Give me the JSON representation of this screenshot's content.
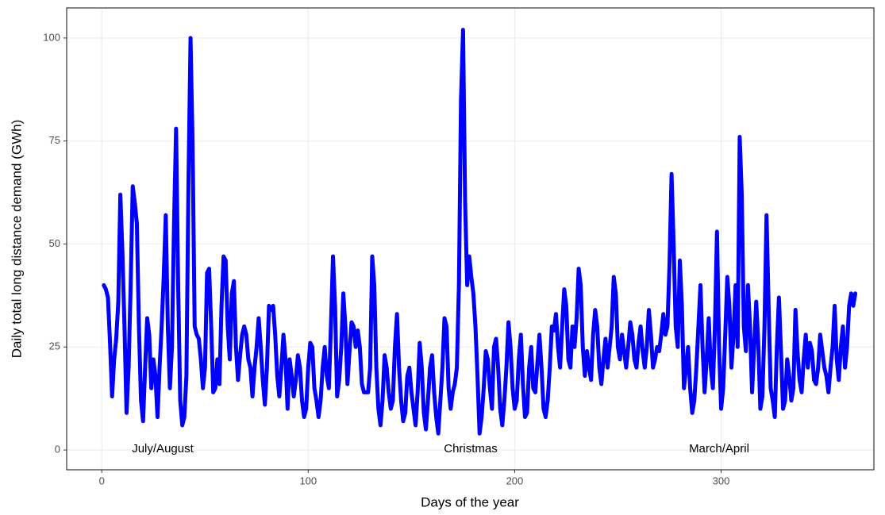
{
  "chart_data": {
    "type": "line",
    "x_label": "Days of the year",
    "y_label": "Daily total long distance demand (GWh)",
    "annotations": [
      "July/August",
      "Christmas",
      "March/April"
    ],
    "color": "#0000ff",
    "grid": true,
    "xlim": [
      -17,
      374
    ],
    "ylim": [
      -4.8,
      107.3
    ],
    "xticks": [
      0,
      100,
      200,
      300
    ],
    "yticks": [
      0,
      25,
      50,
      75,
      100
    ],
    "x": [
      1,
      2,
      3,
      4,
      5,
      6,
      7,
      8,
      9,
      10,
      11,
      12,
      13,
      14,
      15,
      16,
      17,
      18,
      19,
      20,
      21,
      22,
      23,
      24,
      25,
      26,
      27,
      28,
      29,
      30,
      31,
      32,
      33,
      34,
      35,
      36,
      37,
      38,
      39,
      40,
      41,
      42,
      43,
      44,
      45,
      46,
      47,
      48,
      49,
      50,
      51,
      52,
      53,
      54,
      55,
      56,
      57,
      58,
      59,
      60,
      61,
      62,
      63,
      64,
      65,
      66,
      67,
      68,
      69,
      70,
      71,
      72,
      73,
      74,
      75,
      76,
      77,
      78,
      79,
      80,
      81,
      82,
      83,
      84,
      85,
      86,
      87,
      88,
      89,
      90,
      91,
      92,
      93,
      94,
      95,
      96,
      97,
      98,
      99,
      100,
      101,
      102,
      103,
      104,
      105,
      106,
      107,
      108,
      109,
      110,
      111,
      112,
      113,
      114,
      115,
      116,
      117,
      118,
      119,
      120,
      121,
      122,
      123,
      124,
      125,
      126,
      127,
      128,
      129,
      130,
      131,
      132,
      133,
      134,
      135,
      136,
      137,
      138,
      139,
      140,
      141,
      142,
      143,
      144,
      145,
      146,
      147,
      148,
      149,
      150,
      151,
      152,
      153,
      154,
      155,
      156,
      157,
      158,
      159,
      160,
      161,
      162,
      163,
      164,
      165,
      166,
      167,
      168,
      169,
      170,
      171,
      172,
      173,
      174,
      175,
      176,
      177,
      178,
      179,
      180,
      181,
      182,
      183,
      184,
      185,
      186,
      187,
      188,
      189,
      190,
      191,
      192,
      193,
      194,
      195,
      196,
      197,
      198,
      199,
      200,
      201,
      202,
      203,
      204,
      205,
      206,
      207,
      208,
      209,
      210,
      211,
      212,
      213,
      214,
      215,
      216,
      217,
      218,
      219,
      220,
      221,
      222,
      223,
      224,
      225,
      226,
      227,
      228,
      229,
      230,
      231,
      232,
      233,
      234,
      235,
      236,
      237,
      238,
      239,
      240,
      241,
      242,
      243,
      244,
      245,
      246,
      247,
      248,
      249,
      250,
      251,
      252,
      253,
      254,
      255,
      256,
      257,
      258,
      259,
      260,
      261,
      262,
      263,
      264,
      265,
      266,
      267,
      268,
      269,
      270,
      271,
      272,
      273,
      274,
      275,
      276,
      277,
      278,
      279,
      280,
      281,
      282,
      283,
      284,
      285,
      286,
      287,
      288,
      289,
      290,
      291,
      292,
      293,
      294,
      295,
      296,
      297,
      298,
      299,
      300,
      301,
      302,
      303,
      304,
      305,
      306,
      307,
      308,
      309,
      310,
      311,
      312,
      313,
      314,
      315,
      316,
      317,
      318,
      319,
      320,
      321,
      322,
      323,
      324,
      325,
      326,
      327,
      328,
      329,
      330,
      331,
      332,
      333,
      334,
      335,
      336,
      337,
      338,
      339,
      340,
      341,
      342,
      343,
      344,
      345,
      346,
      347,
      348,
      349,
      350,
      351,
      352,
      353,
      354,
      355,
      356,
      357,
      358,
      359,
      360,
      361,
      362,
      363,
      364,
      365
    ],
    "values": [
      40,
      39,
      37,
      26,
      13,
      22,
      27,
      36,
      62,
      48,
      30,
      9,
      20,
      40,
      64,
      60,
      55,
      30,
      12,
      7,
      20,
      32,
      28,
      15,
      22,
      18,
      8,
      20,
      30,
      42,
      57,
      30,
      15,
      25,
      55,
      78,
      40,
      12,
      6,
      8,
      18,
      65,
      100,
      74,
      30,
      28,
      27,
      22,
      15,
      20,
      43,
      44,
      30,
      14,
      15,
      22,
      16,
      35,
      47,
      46,
      30,
      22,
      38,
      41,
      25,
      17,
      23,
      28,
      30,
      28,
      22,
      20,
      13,
      20,
      25,
      32,
      25,
      17,
      11,
      20,
      35,
      34,
      35,
      28,
      18,
      13,
      20,
      28,
      22,
      10,
      22,
      18,
      13,
      17,
      23,
      20,
      12,
      8,
      10,
      20,
      26,
      25,
      15,
      12,
      8,
      12,
      20,
      25,
      18,
      15,
      30,
      47,
      35,
      13,
      17,
      25,
      38,
      30,
      16,
      24,
      31,
      30,
      25,
      29,
      25,
      16,
      14,
      14,
      14,
      20,
      47,
      40,
      20,
      10,
      6,
      12,
      23,
      20,
      14,
      10,
      12,
      25,
      33,
      20,
      12,
      7,
      9,
      18,
      20,
      14,
      10,
      6,
      14,
      26,
      20,
      9,
      5,
      12,
      20,
      23,
      14,
      8,
      4,
      12,
      20,
      32,
      30,
      15,
      10,
      14,
      16,
      20,
      40,
      85,
      102,
      60,
      40,
      47,
      42,
      38,
      30,
      18,
      4,
      8,
      15,
      24,
      22,
      15,
      10,
      25,
      27,
      20,
      10,
      6,
      12,
      20,
      31,
      25,
      15,
      10,
      12,
      22,
      28,
      16,
      8,
      9,
      20,
      25,
      15,
      14,
      21,
      28,
      20,
      10,
      8,
      12,
      20,
      30,
      29,
      33,
      25,
      20,
      30,
      39,
      35,
      22,
      20,
      30,
      25,
      32,
      44,
      40,
      25,
      18,
      24,
      20,
      17,
      28,
      34,
      30,
      20,
      16,
      22,
      27,
      20,
      25,
      30,
      42,
      38,
      25,
      22,
      28,
      24,
      20,
      25,
      31,
      28,
      22,
      20,
      26,
      30,
      24,
      20,
      25,
      34,
      28,
      20,
      22,
      25,
      24,
      28,
      33,
      28,
      30,
      45,
      67,
      50,
      30,
      25,
      46,
      35,
      15,
      20,
      25,
      15,
      9,
      12,
      20,
      30,
      40,
      25,
      14,
      22,
      32,
      20,
      15,
      30,
      53,
      25,
      10,
      15,
      28,
      42,
      35,
      20,
      28,
      40,
      25,
      76,
      62,
      30,
      24,
      40,
      30,
      14,
      25,
      36,
      26,
      10,
      13,
      30,
      57,
      35,
      15,
      12,
      8,
      25,
      37,
      24,
      10,
      12,
      22,
      18,
      12,
      15,
      34,
      24,
      17,
      14,
      22,
      28,
      20,
      26,
      24,
      17,
      16,
      20,
      28,
      24,
      20,
      18,
      14,
      20,
      25,
      35,
      22,
      17,
      25,
      30,
      20,
      25,
      35,
      38,
      35,
      38
    ]
  }
}
